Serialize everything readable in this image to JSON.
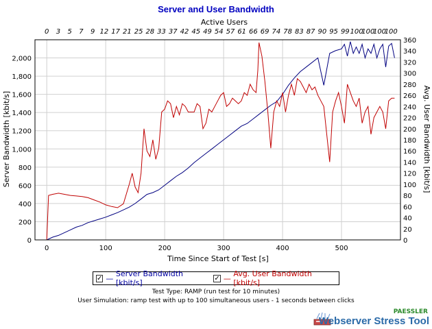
{
  "chart_data": {
    "type": "line",
    "title": "Server and User Bandwidth",
    "top_axis_label": "Active Users",
    "top_ticks": [
      "0",
      "3",
      "5",
      "7",
      "9",
      "12",
      "17",
      "21",
      "25",
      "28",
      "33",
      "37",
      "42",
      "45",
      "49",
      "54",
      "57",
      "61",
      "66",
      "69",
      "74",
      "78",
      "83",
      "87",
      "90",
      "95",
      "99",
      "100",
      "100",
      "100",
      "100"
    ],
    "xlabel": "Time Since Start of Test [s]",
    "ylabel_left": "Server Bandwidth [kbit/s]",
    "ylabel_right": "Avg. User Bandwidth [kbit/s]",
    "xlim": [
      -20,
      600
    ],
    "ylim_left": [
      0,
      2200
    ],
    "ylim_right": [
      0,
      360
    ],
    "x_ticks": [
      0,
      100,
      200,
      300,
      400,
      500
    ],
    "y_ticks_left": [
      0,
      200,
      400,
      600,
      800,
      1000,
      1200,
      1400,
      1600,
      1800,
      2000
    ],
    "y_ticks_left_labels": [
      "0",
      "200",
      "400",
      "600",
      "800",
      "1,000",
      "1,200",
      "1,400",
      "1,600",
      "1,800",
      "2,000"
    ],
    "y_ticks_right": [
      0,
      20,
      40,
      60,
      80,
      100,
      120,
      140,
      160,
      180,
      200,
      220,
      240,
      260,
      280,
      300,
      320,
      340,
      360
    ],
    "grid": true,
    "series": [
      {
        "name": "Server Bandwidth [kbit/s]",
        "axis": "left",
        "color": "#000080",
        "x": [
          0,
          10,
          20,
          30,
          40,
          50,
          60,
          70,
          80,
          90,
          100,
          110,
          120,
          130,
          140,
          150,
          160,
          170,
          180,
          190,
          200,
          210,
          220,
          230,
          240,
          250,
          260,
          270,
          280,
          290,
          300,
          310,
          320,
          330,
          340,
          350,
          360,
          370,
          380,
          390,
          400,
          410,
          420,
          430,
          440,
          450,
          460,
          470,
          480,
          490,
          500,
          505,
          510,
          515,
          520,
          525,
          530,
          535,
          540,
          545,
          550,
          555,
          560,
          565,
          570,
          575,
          580,
          585,
          590
        ],
        "y": [
          0,
          30,
          50,
          80,
          110,
          140,
          160,
          190,
          210,
          230,
          250,
          275,
          300,
          330,
          360,
          400,
          450,
          500,
          520,
          550,
          600,
          650,
          700,
          740,
          790,
          850,
          900,
          950,
          1000,
          1050,
          1100,
          1150,
          1200,
          1250,
          1280,
          1330,
          1380,
          1430,
          1480,
          1520,
          1600,
          1700,
          1780,
          1850,
          1900,
          1950,
          2000,
          1700,
          2050,
          2080,
          2100,
          2150,
          2020,
          2180,
          2050,
          2120,
          2050,
          2150,
          2000,
          2100,
          2050,
          2150,
          2000,
          2100,
          2150,
          1900,
          2130,
          2160,
          2000
        ]
      },
      {
        "name": "Avg. User Bandwidth [kbit/s]",
        "axis": "right",
        "color": "#c00000",
        "x": [
          0,
          3,
          10,
          20,
          30,
          40,
          50,
          60,
          70,
          80,
          90,
          100,
          110,
          120,
          130,
          140,
          145,
          150,
          155,
          160,
          165,
          170,
          175,
          180,
          185,
          190,
          195,
          200,
          205,
          210,
          215,
          220,
          225,
          230,
          235,
          240,
          245,
          250,
          255,
          260,
          265,
          270,
          275,
          280,
          285,
          290,
          295,
          300,
          305,
          310,
          315,
          320,
          325,
          330,
          335,
          340,
          345,
          350,
          355,
          358,
          360,
          365,
          370,
          375,
          380,
          385,
          390,
          395,
          400,
          405,
          410,
          415,
          420,
          425,
          430,
          435,
          440,
          445,
          450,
          455,
          460,
          465,
          470,
          475,
          480,
          485,
          490,
          495,
          500,
          505,
          510,
          515,
          520,
          525,
          530,
          535,
          540,
          545,
          550,
          555,
          560,
          565,
          570,
          575,
          580,
          585,
          590
        ],
        "y": [
          0,
          80,
          82,
          84,
          82,
          80,
          79,
          78,
          76,
          72,
          68,
          63,
          60,
          58,
          65,
          100,
          120,
          95,
          85,
          120,
          200,
          160,
          150,
          180,
          145,
          165,
          230,
          235,
          250,
          245,
          220,
          240,
          225,
          245,
          240,
          230,
          230,
          230,
          245,
          240,
          200,
          210,
          235,
          230,
          240,
          250,
          260,
          265,
          240,
          245,
          255,
          250,
          245,
          250,
          265,
          260,
          280,
          270,
          265,
          305,
          355,
          330,
          285,
          230,
          165,
          230,
          250,
          240,
          265,
          230,
          260,
          280,
          260,
          290,
          285,
          275,
          265,
          280,
          270,
          275,
          260,
          250,
          240,
          190,
          140,
          230,
          250,
          265,
          240,
          210,
          280,
          265,
          250,
          240,
          255,
          210,
          230,
          240,
          190,
          220,
          230,
          240,
          230,
          200,
          250,
          255,
          255
        ]
      }
    ]
  },
  "legend": {
    "check_mark": "✓",
    "series1": "Server Bandwidth [kbit/s]",
    "series2": "Avg. User Bandwidth [kbit/s]"
  },
  "notes": {
    "line1": "Test Type: RAMP (run test for 10 minutes)",
    "line2": "User Simulation: ramp test with up to 100 simultaneous users - 1 seconds between clicks"
  },
  "branding": {
    "vendor": "PAESSLER",
    "product": "Webserver Stress Tool"
  }
}
